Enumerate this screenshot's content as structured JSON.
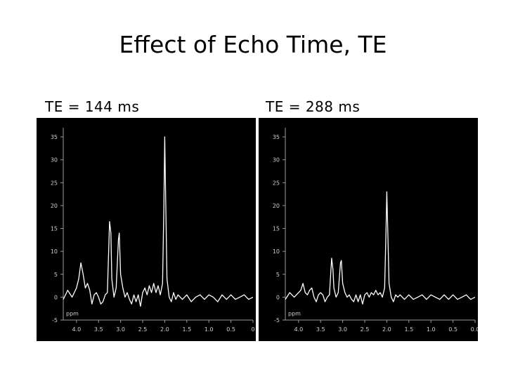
{
  "slide": {
    "title": "Effect of Echo Time, TE"
  },
  "chart_data": [
    {
      "type": "line",
      "title": "TE = 144 ms",
      "xlabel": "ppm",
      "ylabel": "",
      "x_reversed": true,
      "xlim": [
        0.0,
        4.3
      ],
      "ylim": [
        -5,
        37
      ],
      "yticks": [
        "35",
        "30",
        "25",
        "20",
        "15",
        "10",
        "5",
        "0",
        "-5"
      ],
      "xticks": [
        "4.0",
        "3.5",
        "3.0",
        "2.5",
        "2.0",
        "1.5",
        "1.0",
        "0.5",
        "0"
      ],
      "grid": false,
      "background": "#000000",
      "line_color": "#ffffff",
      "series": [
        {
          "x": [
            4.3,
            4.2,
            4.1,
            4.0,
            3.95,
            3.9,
            3.85,
            3.8,
            3.75,
            3.7,
            3.65,
            3.6,
            3.55,
            3.5,
            3.45,
            3.4,
            3.35,
            3.3,
            3.25,
            3.22,
            3.2,
            3.15,
            3.1,
            3.05,
            3.03,
            3.0,
            2.95,
            2.9,
            2.85,
            2.8,
            2.75,
            2.7,
            2.65,
            2.6,
            2.55,
            2.5,
            2.45,
            2.4,
            2.35,
            2.3,
            2.25,
            2.2,
            2.15,
            2.1,
            2.05,
            2.02,
            2.0,
            1.98,
            1.95,
            1.9,
            1.85,
            1.8,
            1.75,
            1.7,
            1.6,
            1.5,
            1.4,
            1.3,
            1.2,
            1.1,
            1.0,
            0.9,
            0.8,
            0.7,
            0.6,
            0.5,
            0.4,
            0.3,
            0.2,
            0.1,
            0.0
          ],
          "y": [
            -0.5,
            1.5,
            0,
            2,
            4,
            7.5,
            5,
            2,
            3,
            1.5,
            -1.5,
            0.5,
            1,
            0,
            -1.5,
            -1,
            0.5,
            1,
            16.5,
            14,
            4,
            0,
            2,
            12.5,
            14,
            5,
            2,
            0,
            1,
            -0.5,
            -1.5,
            0.5,
            -1,
            0.5,
            -2,
            1,
            2,
            0.5,
            2.5,
            1,
            3,
            1,
            2.5,
            0.5,
            3,
            20,
            35,
            22,
            4,
            0,
            -1,
            1,
            -0.5,
            0.5,
            -0.5,
            0.5,
            -1,
            0,
            0.5,
            -0.5,
            0.5,
            0,
            -1,
            0.5,
            -0.5,
            0.5,
            -0.5,
            0,
            0.5,
            -0.5,
            0
          ]
        }
      ]
    },
    {
      "type": "line",
      "title": "TE = 288 ms",
      "xlabel": "ppm",
      "ylabel": "",
      "x_reversed": true,
      "xlim": [
        0.0,
        4.3
      ],
      "ylim": [
        -5,
        37
      ],
      "yticks": [
        "35",
        "30",
        "25",
        "20",
        "15",
        "10",
        "5",
        "0",
        "-5"
      ],
      "xticks": [
        "4.0",
        "3.5",
        "3.0",
        "2.5",
        "2.0",
        "1.5",
        "1.0",
        "0.5",
        "0.0"
      ],
      "grid": false,
      "background": "#000000",
      "line_color": "#ffffff",
      "series": [
        {
          "x": [
            4.3,
            4.2,
            4.1,
            4.0,
            3.95,
            3.9,
            3.85,
            3.8,
            3.75,
            3.7,
            3.65,
            3.6,
            3.55,
            3.5,
            3.45,
            3.4,
            3.35,
            3.3,
            3.25,
            3.22,
            3.2,
            3.15,
            3.1,
            3.05,
            3.03,
            3.0,
            2.95,
            2.9,
            2.85,
            2.8,
            2.75,
            2.7,
            2.65,
            2.6,
            2.55,
            2.5,
            2.45,
            2.4,
            2.35,
            2.3,
            2.25,
            2.2,
            2.15,
            2.1,
            2.05,
            2.02,
            2.0,
            1.98,
            1.95,
            1.9,
            1.85,
            1.8,
            1.75,
            1.7,
            1.6,
            1.5,
            1.4,
            1.3,
            1.2,
            1.1,
            1.0,
            0.9,
            0.8,
            0.7,
            0.6,
            0.5,
            0.4,
            0.3,
            0.2,
            0.1,
            0.0
          ],
          "y": [
            -0.5,
            1,
            0,
            1,
            1.5,
            3,
            1,
            0.5,
            1.5,
            2,
            0,
            -1,
            0.5,
            1,
            0.5,
            -1,
            0,
            0.5,
            8.5,
            6,
            2,
            0,
            1,
            7.5,
            8,
            3,
            1,
            0,
            0.5,
            -0.5,
            -1,
            0.5,
            -1,
            0.5,
            -1.5,
            0.5,
            1,
            0,
            1,
            0.5,
            1.5,
            0.5,
            1,
            0,
            2,
            14,
            23,
            15,
            3,
            0,
            -1,
            0.5,
            0,
            0.5,
            -0.5,
            0.5,
            -0.5,
            0,
            0.5,
            -0.5,
            0.5,
            0,
            -0.5,
            0.5,
            -0.5,
            0.5,
            -0.5,
            0,
            0.5,
            -0.5,
            0
          ]
        }
      ]
    }
  ]
}
